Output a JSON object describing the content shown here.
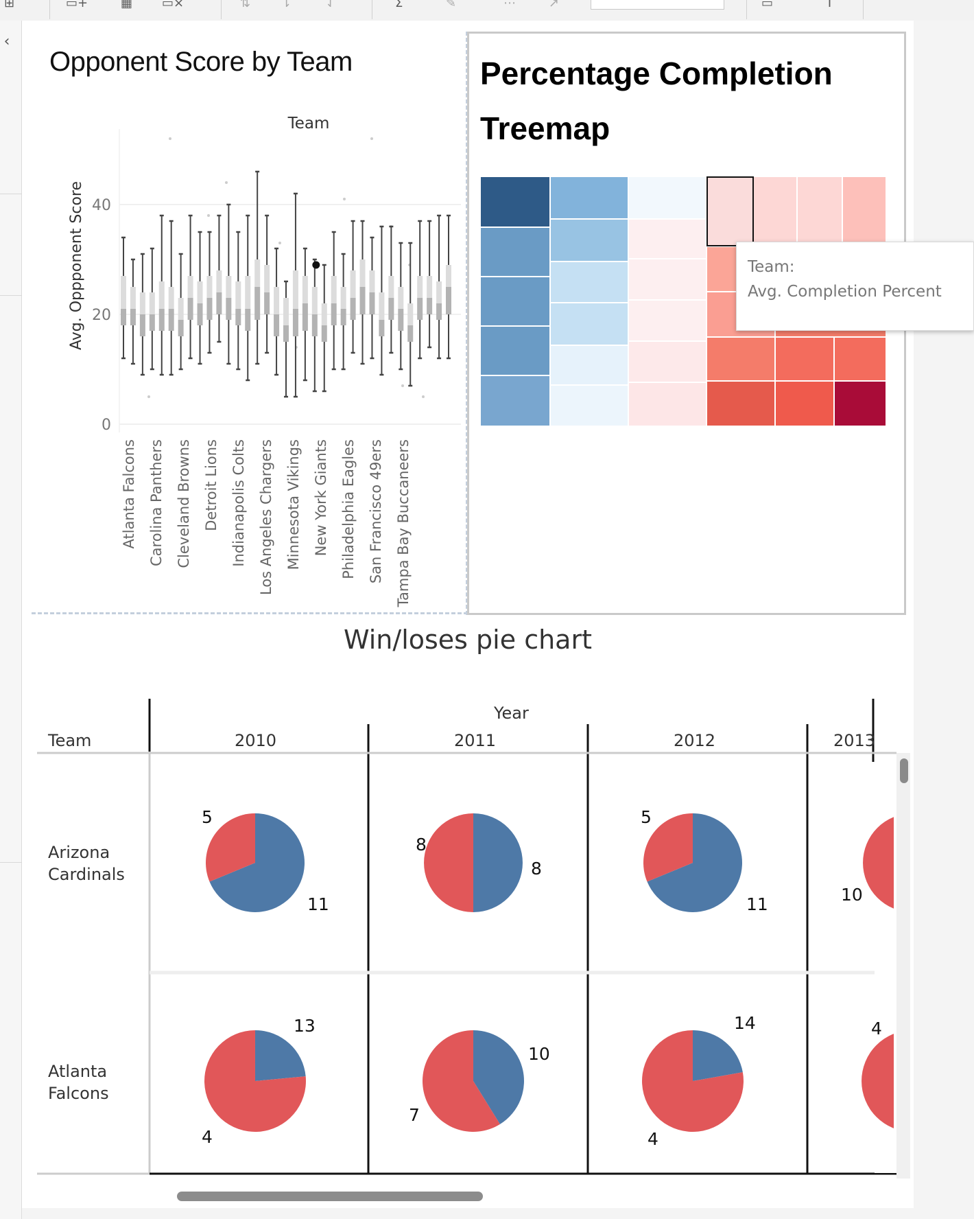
{
  "toolbar": {
    "icons": [
      "add-worksheet-icon",
      "add-worksheet-icon",
      "new-dashboard-icon",
      "clear-worksheet-icon",
      "swap-icon",
      "sort-ascending-icon",
      "sort-descending-icon",
      "totals-icon",
      "highlight-icon",
      "group-icon",
      "pin-icon",
      "fit-icon",
      "label-icon"
    ]
  },
  "boxplot": {
    "title": "Opponent Score by Team",
    "column_header": "Team",
    "y_axis_label": "Avg. Oppponent Score"
  },
  "treemap": {
    "title": "Percentage Completion Treemap",
    "tooltip": {
      "line1": "Team:",
      "line2": "Avg. Completion Percent"
    }
  },
  "pie_grid": {
    "title": "Win/loses pie chart",
    "column_group_header": "Year",
    "row_header": "Team",
    "years": [
      "2010",
      "2011",
      "2012",
      "2013"
    ],
    "teams": [
      "Arizona Cardinals",
      "Atlanta Falcons"
    ],
    "colors": {
      "wins": "#4e79a7",
      "losses": "#e15759"
    }
  },
  "chart_data": [
    {
      "type": "box",
      "title": "Opponent Score by Team",
      "xlabel": "Team",
      "ylabel": "Avg. Oppponent Score",
      "ylim": [
        0,
        55
      ],
      "yticks": [
        0,
        20,
        40
      ],
      "grid": true,
      "labeled_categories": [
        "Atlanta Falcons",
        "Carolina Panthers",
        "Cleveland Browns",
        "Detroit Lions",
        "Indianapolis Colts",
        "Los Angeles Chargers",
        "Minnesota Vikings",
        "New York Giants",
        "Philadelphia Eagles",
        "San Francisco 49ers",
        "Tampa Bay Buccaneers"
      ],
      "boxes": [
        {
          "min": 12,
          "q1": 18,
          "median": 21,
          "q3": 27,
          "max": 34
        },
        {
          "min": 11,
          "q1": 18,
          "median": 21,
          "q3": 25,
          "max": 30
        },
        {
          "min": 9,
          "q1": 16,
          "median": 20,
          "q3": 24,
          "max": 31
        },
        {
          "min": 10,
          "q1": 17,
          "median": 20,
          "q3": 24,
          "max": 32
        },
        {
          "min": 9,
          "q1": 17,
          "median": 21,
          "q3": 26,
          "max": 38
        },
        {
          "min": 9,
          "q1": 17,
          "median": 21,
          "q3": 25,
          "max": 37
        },
        {
          "min": 10,
          "q1": 16,
          "median": 19,
          "q3": 23,
          "max": 31
        },
        {
          "min": 12,
          "q1": 19,
          "median": 23,
          "q3": 27,
          "max": 38
        },
        {
          "min": 11,
          "q1": 18,
          "median": 22,
          "q3": 26,
          "max": 35
        },
        {
          "min": 13,
          "q1": 19,
          "median": 23,
          "q3": 27,
          "max": 35
        },
        {
          "min": 15,
          "q1": 20,
          "median": 24,
          "q3": 28,
          "max": 38
        },
        {
          "min": 11,
          "q1": 19,
          "median": 23,
          "q3": 27,
          "max": 40
        },
        {
          "min": 10,
          "q1": 18,
          "median": 21,
          "q3": 26,
          "max": 35
        },
        {
          "min": 8,
          "q1": 17,
          "median": 21,
          "q3": 27,
          "max": 38
        },
        {
          "min": 11,
          "q1": 19,
          "median": 25,
          "q3": 30,
          "max": 46
        },
        {
          "min": 13,
          "q1": 20,
          "median": 24,
          "q3": 29,
          "max": 38
        },
        {
          "min": 9,
          "q1": 16,
          "median": 20,
          "q3": 25,
          "max": 32
        },
        {
          "min": 5,
          "q1": 15,
          "median": 18,
          "q3": 23,
          "max": 26
        },
        {
          "min": 5,
          "q1": 16,
          "median": 21,
          "q3": 28,
          "max": 42
        },
        {
          "min": 8,
          "q1": 17,
          "median": 22,
          "q3": 27,
          "max": 32
        },
        {
          "min": 6,
          "q1": 16,
          "median": 20,
          "q3": 25,
          "max": 30
        },
        {
          "min": 6,
          "q1": 15,
          "median": 18,
          "q3": 22,
          "max": 29
        },
        {
          "min": 10,
          "q1": 18,
          "median": 22,
          "q3": 27,
          "max": 35
        },
        {
          "min": 10,
          "q1": 18,
          "median": 21,
          "q3": 25,
          "max": 31
        },
        {
          "min": 13,
          "q1": 19,
          "median": 23,
          "q3": 28,
          "max": 37
        },
        {
          "min": 11,
          "q1": 20,
          "median": 25,
          "q3": 30,
          "max": 37
        },
        {
          "min": 12,
          "q1": 20,
          "median": 24,
          "q3": 28,
          "max": 34
        },
        {
          "min": 9,
          "q1": 16,
          "median": 19,
          "q3": 24,
          "max": 36
        },
        {
          "min": 13,
          "q1": 19,
          "median": 23,
          "q3": 27,
          "max": 36
        },
        {
          "min": 10,
          "q1": 17,
          "median": 21,
          "q3": 25,
          "max": 33
        },
        {
          "min": 7,
          "q1": 15,
          "median": 18,
          "q3": 22,
          "max": 33
        },
        {
          "min": 12,
          "q1": 19,
          "median": 23,
          "q3": 27,
          "max": 37
        },
        {
          "min": 14,
          "q1": 20,
          "median": 23,
          "q3": 27,
          "max": 37
        },
        {
          "min": 12,
          "q1": 19,
          "median": 22,
          "q3": 26,
          "max": 38
        },
        {
          "min": 12,
          "q1": 20,
          "median": 25,
          "q3": 29,
          "max": 38
        }
      ],
      "highlighted_mean": {
        "box_index": 20,
        "value": 29
      }
    },
    {
      "type": "treemap",
      "title": "Percentage Completion Treemap",
      "color_scheme": "diverging blue-red",
      "columns": [
        {
          "colors": [
            "#2e5a87",
            "#6a9bc5",
            "#6a9bc5",
            "#6a9bc5",
            "#79a6cf"
          ]
        },
        {
          "colors": [
            "#82b3db",
            "#98c3e3",
            "#c5e0f3",
            "#c5e0f3",
            "#e6f2fb",
            "#ecf5fc"
          ]
        },
        {
          "colors": [
            "#f2f8fd",
            "#fdeff0",
            "#fdeff0",
            "#fdeff0",
            "#fde9ea",
            "#fde6e7"
          ]
        },
        {
          "colors": [
            "#fadcdb",
            "#fdd7d5",
            "#fdd7d5",
            "#fdc0ba"
          ],
          "selected_index": 0
        },
        {
          "colors": [
            "#fba597",
            "#f98a78",
            "#f98a78",
            "#f98a78",
            "#fa9e92",
            "#f47c6a",
            "#f47c6a",
            "#f36c5d",
            "#f36c5d",
            "#e55a4c",
            "#ef5a4c",
            "#ee5a4e",
            "#a90c38"
          ]
        }
      ]
    },
    {
      "type": "pie",
      "title": "Win/loses pie chart",
      "rows": "Team",
      "columns": "Year",
      "pies": [
        {
          "team": "Arizona Cardinals",
          "year": "2010",
          "wins": 11,
          "losses": 5
        },
        {
          "team": "Arizona Cardinals",
          "year": "2011",
          "wins": 8,
          "losses": 8
        },
        {
          "team": "Arizona Cardinals",
          "year": "2012",
          "wins": 11,
          "losses": 5
        },
        {
          "team": "Arizona Cardinals",
          "year": "2013",
          "wins": 10,
          "losses": null
        },
        {
          "team": "Atlanta Falcons",
          "year": "2010",
          "wins": 4,
          "losses": 13
        },
        {
          "team": "Atlanta Falcons",
          "year": "2011",
          "wins": 7,
          "losses": 10
        },
        {
          "team": "Atlanta Falcons",
          "year": "2012",
          "wins": 4,
          "losses": 14
        },
        {
          "team": "Atlanta Falcons",
          "year": "2013",
          "wins": 4,
          "losses": null
        }
      ]
    }
  ]
}
